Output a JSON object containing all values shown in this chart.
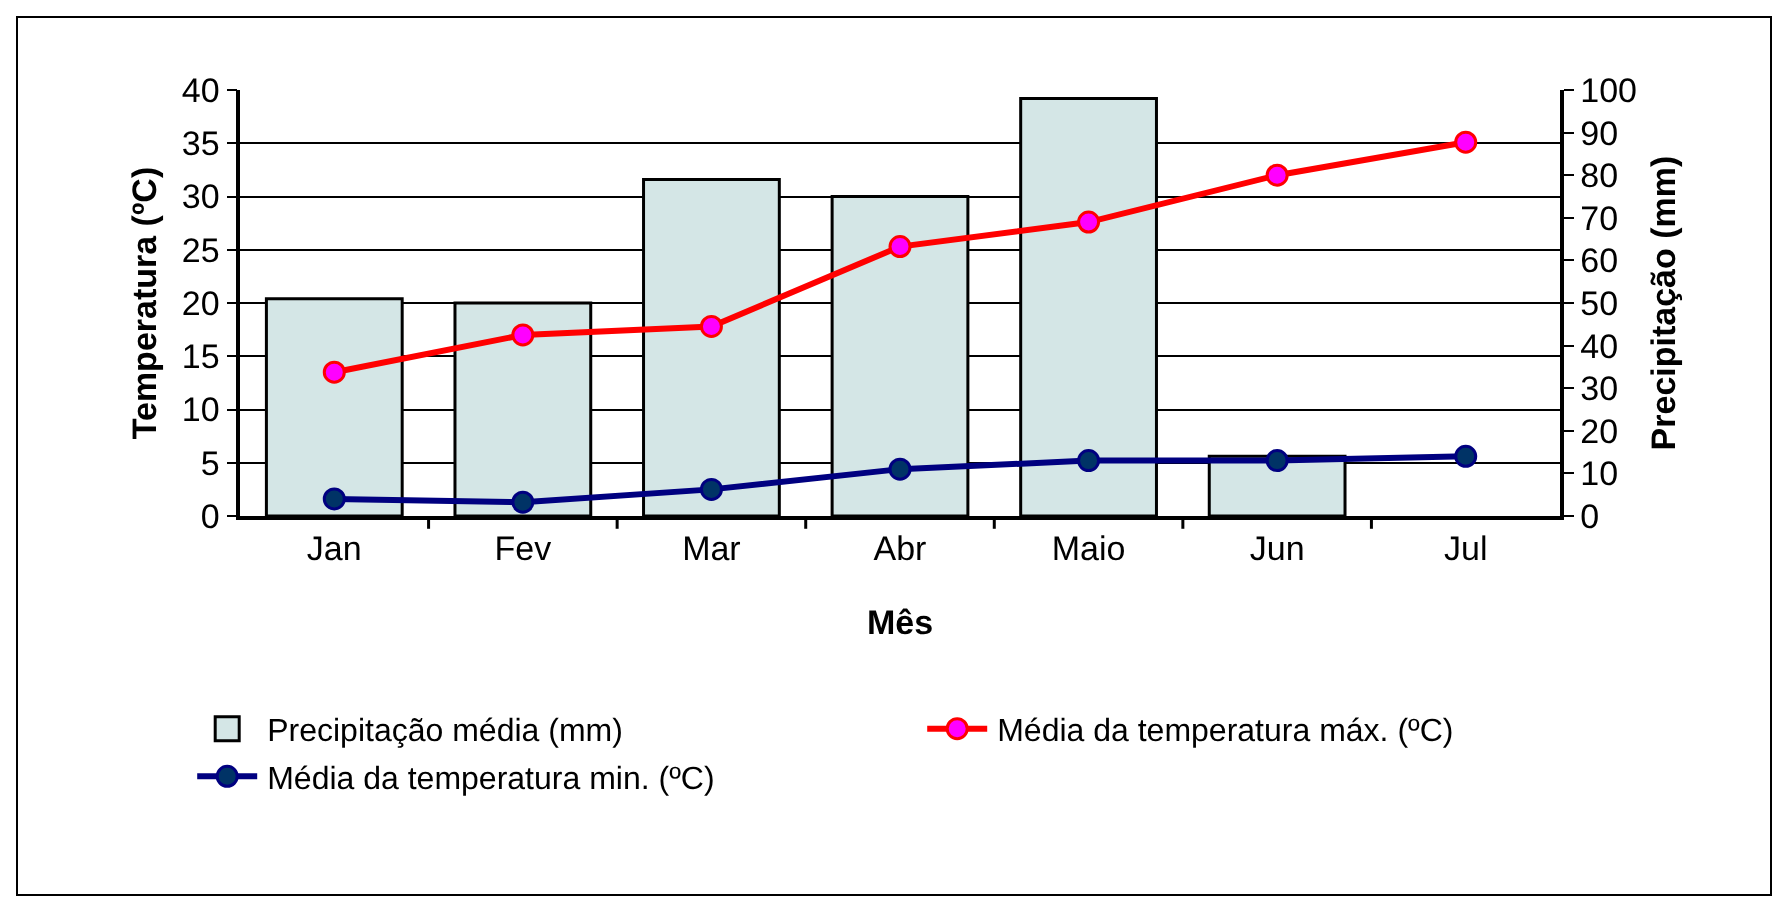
{
  "chart_data": {
    "type": "bar",
    "xlabel": "Mês",
    "ylabel": "Temperatura (ºC)",
    "y2label": "Precipitação (mm)",
    "categories": [
      "Jan",
      "Fev",
      "Mar",
      "Abr",
      "Maio",
      "Jun",
      "Jul"
    ],
    "series": [
      {
        "name": "Precipitação média (mm)",
        "axis": "y2",
        "color": "#d4e6e6",
        "values": [
          51,
          50,
          79,
          75,
          98,
          14,
          null
        ]
      },
      {
        "name": "Média da temperatura máx. (ºC)",
        "type": "line",
        "color": "#ff0000",
        "values": [
          13.5,
          17.0,
          17.8,
          25.3,
          27.6,
          32.0,
          35.1
        ]
      },
      {
        "name": "Média da temperatura min. (ºC)",
        "type": "line",
        "color": "#000080",
        "values": [
          1.6,
          1.3,
          2.5,
          4.4,
          5.2,
          5.2,
          5.6
        ]
      }
    ],
    "ylim": [
      0,
      40
    ],
    "yticks": [
      0,
      5,
      10,
      15,
      20,
      25,
      30,
      35,
      40
    ],
    "y2lim": [
      0,
      100
    ],
    "y2ticks": [
      0,
      10,
      20,
      30,
      40,
      50,
      60,
      70,
      80,
      90,
      100
    ],
    "grid": "y",
    "legend": "bottom",
    "marker": "circle",
    "line_style": "solid"
  }
}
